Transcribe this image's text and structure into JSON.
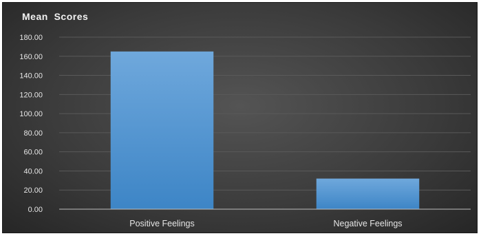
{
  "chart_data": {
    "type": "bar",
    "title": "Mean  Scores",
    "categories": [
      "Positive Feelings",
      "Negative Feelings"
    ],
    "values": [
      165,
      32
    ],
    "xlabel": "",
    "ylabel": "",
    "ylim": [
      0,
      180
    ],
    "yticks": [
      "0.00",
      "20.00",
      "40.00",
      "60.00",
      "80.00",
      "100.00",
      "120.00",
      "140.00",
      "160.00",
      "180.00"
    ],
    "grid": true,
    "legend": "none",
    "colors": {
      "bar_top": "#6fa8dc",
      "bar_bottom": "#3d85c6",
      "gridline": "#5a5a5a",
      "axis": "#bfbfbf",
      "text": "#e6e6e6"
    }
  }
}
